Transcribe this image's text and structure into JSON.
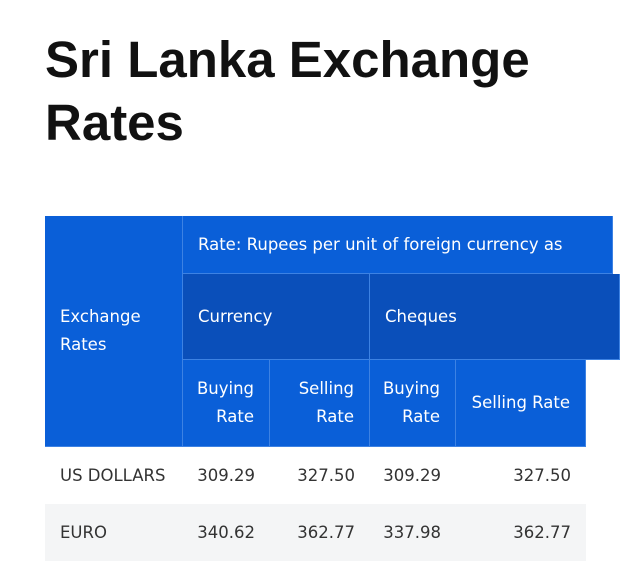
{
  "header": {
    "title": "Sri Lanka Exchange Rates"
  },
  "table": {
    "corner": "Exchange Rates",
    "note": "Rate: Rupees per unit of foreign currency as",
    "groups": [
      "Currency",
      "Cheques"
    ],
    "subheaders": [
      "Buying Rate",
      "Selling Rate",
      "Buying Rate",
      "Selling Rate"
    ],
    "rows": [
      [
        "US DOLLARS",
        "309.29",
        "327.50",
        "309.29",
        "327.50"
      ],
      [
        "EURO",
        "340.62",
        "362.77",
        "337.98",
        "362.77"
      ]
    ]
  }
}
